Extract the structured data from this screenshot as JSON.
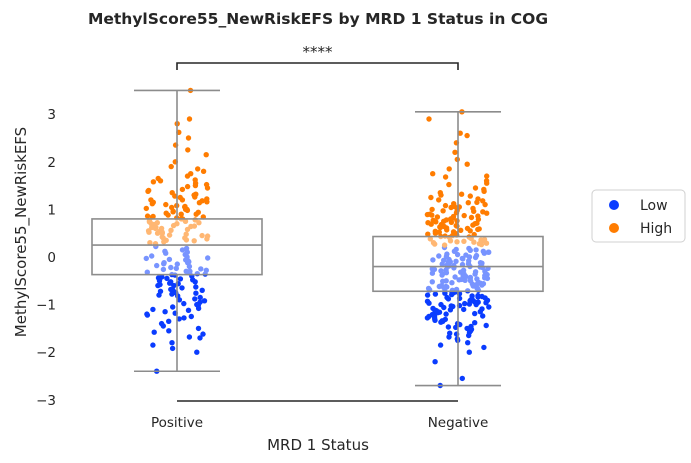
{
  "chart_data": {
    "type": "box+strip",
    "title": "MethylScore55_NewRiskEFS by MRD 1 Status in COG",
    "xlabel": "MRD 1 Status",
    "ylabel": "MethylScore55_NewRiskEFS",
    "categories": [
      "Positive",
      "Negative"
    ],
    "y_ticks": [
      -3,
      -2,
      -1,
      0,
      1,
      2,
      3
    ],
    "ylim": [
      -3.05,
      3.7
    ],
    "grid": false,
    "boxes": [
      {
        "category": "Positive",
        "whisker_low": -2.4,
        "q1": -0.37,
        "median": 0.25,
        "q3": 0.8,
        "whisker_high": 3.5
      },
      {
        "category": "Negative",
        "whisker_low": -2.7,
        "q1": -0.72,
        "median": -0.2,
        "q3": 0.43,
        "whisker_high": 3.05
      }
    ],
    "significance": {
      "label": "****",
      "between": [
        "Positive",
        "Negative"
      ]
    },
    "legend": {
      "placement": "right",
      "entries": [
        {
          "name": "Low",
          "color": "#0a3cff"
        },
        {
          "name": "High",
          "color": "#ff7c00"
        }
      ]
    },
    "strip_series": [
      {
        "name": "Low",
        "color": "#0a3cff",
        "points": {
          "Positive": [
            0.18,
            0.12,
            0.05,
            -0.02,
            -0.08,
            -0.12,
            -0.18,
            -0.25,
            -0.3,
            -0.35,
            -0.4,
            -0.45,
            -0.52,
            -0.6,
            -0.65,
            -0.72,
            -0.8,
            -0.88,
            -0.95,
            -1.02,
            -1.1,
            -1.18,
            -1.25,
            -1.35,
            -1.45,
            -1.55,
            -1.62,
            -1.7,
            -1.8,
            -1.92,
            -2.0,
            -2.4,
            0.22,
            0.08,
            -0.05,
            -0.15,
            -0.28,
            -0.38,
            -0.48,
            -0.58,
            -0.7,
            -0.85,
            -1.0,
            -1.15,
            -1.3,
            -1.5,
            -1.68,
            -1.85,
            0.15,
            0.02,
            -0.1,
            -0.22,
            -0.33,
            -0.42,
            -0.55,
            -0.68,
            -0.78,
            -0.92,
            -1.05,
            -1.22,
            -1.4,
            -1.58,
            0.1,
            -0.03,
            -0.14,
            -0.26,
            -0.37,
            -0.5,
            -0.63,
            -0.75,
            -0.9,
            -1.08,
            -1.28,
            -0.2,
            -0.32,
            -0.46,
            -0.6,
            -0.82,
            0.0,
            -0.12,
            -0.24,
            -0.36,
            -0.44,
            -0.56,
            -0.7,
            -0.98,
            -1.2,
            -0.06,
            -0.3,
            -0.52,
            -0.76,
            -1.12
          ],
          "Negative": [
            0.2,
            0.15,
            0.1,
            0.05,
            0.02,
            -0.03,
            -0.08,
            -0.12,
            -0.16,
            -0.2,
            -0.25,
            -0.3,
            -0.34,
            -0.38,
            -0.42,
            -0.46,
            -0.5,
            -0.55,
            -0.6,
            -0.65,
            -0.7,
            -0.75,
            -0.8,
            -0.85,
            -0.9,
            -0.95,
            -1.0,
            -1.05,
            -1.1,
            -1.15,
            -1.2,
            -1.28,
            -1.35,
            -1.42,
            -1.5,
            -1.58,
            -1.65,
            -1.72,
            -1.8,
            -1.9,
            -2.0,
            -2.2,
            -2.55,
            -2.7,
            0.18,
            0.12,
            0.06,
            0.0,
            -0.05,
            -0.1,
            -0.15,
            -0.2,
            -0.26,
            -0.32,
            -0.37,
            -0.43,
            -0.48,
            -0.53,
            -0.58,
            -0.63,
            -0.68,
            -0.73,
            -0.78,
            -0.83,
            -0.88,
            -0.93,
            -0.98,
            -1.03,
            -1.08,
            -1.14,
            -1.22,
            -1.3,
            -1.38,
            -1.46,
            -1.55,
            -1.68,
            -1.85,
            0.16,
            0.08,
            0.01,
            -0.06,
            -0.13,
            -0.19,
            -0.24,
            -0.29,
            -0.35,
            -0.4,
            -0.45,
            -0.51,
            -0.57,
            -0.62,
            -0.67,
            -0.72,
            -0.77,
            -0.82,
            -0.87,
            -0.92,
            -0.99,
            -1.06,
            -1.12,
            -1.19,
            -1.25,
            -1.33,
            -1.4,
            -1.48,
            -1.6,
            0.14,
            0.04,
            -0.04,
            -0.11,
            -0.18,
            -0.23,
            -0.28,
            -0.33,
            -0.39,
            -0.44,
            -0.49,
            -0.54,
            -0.59,
            -0.64,
            -0.69,
            -0.74,
            -0.79,
            -0.86,
            -0.91,
            -0.97,
            -1.04,
            -1.11,
            -1.17,
            -1.24,
            -1.31,
            -1.44,
            -1.52,
            0.1,
            -0.01,
            -0.09,
            -0.14,
            -0.22,
            -0.27,
            -0.31,
            -0.36,
            -0.41,
            -0.47,
            -0.52,
            -0.56,
            -0.61,
            -0.66,
            -0.71,
            -0.76,
            -0.84,
            -0.89,
            -0.96,
            -1.02,
            -1.09,
            -1.16,
            -1.26,
            -1.37,
            0.12,
            0.03,
            -0.07,
            -0.17,
            -0.21,
            -0.36,
            -0.44,
            -0.5,
            -0.62,
            -0.7,
            -0.81,
            -0.94,
            -1.0,
            -1.13,
            -1.21,
            -1.34,
            -1.47,
            -1.62,
            -1.75
          ]
        }
      },
      {
        "name": "High",
        "color": "#ff7c00",
        "points": {
          "Positive": [
            0.3,
            0.35,
            0.4,
            0.45,
            0.5,
            0.55,
            0.6,
            0.65,
            0.7,
            0.75,
            0.8,
            0.85,
            0.9,
            0.95,
            1.0,
            1.05,
            1.1,
            1.15,
            1.2,
            1.25,
            1.3,
            1.35,
            1.4,
            1.45,
            1.5,
            1.55,
            1.6,
            1.65,
            1.7,
            1.8,
            1.9,
            2.0,
            2.15,
            2.25,
            2.35,
            2.5,
            2.62,
            2.8,
            2.9,
            3.5,
            0.32,
            0.42,
            0.52,
            0.62,
            0.72,
            0.82,
            0.92,
            1.02,
            1.12,
            1.22,
            1.32,
            1.42,
            1.52,
            1.62,
            1.75,
            1.85,
            0.38,
            0.48,
            0.58,
            0.68,
            0.78,
            0.88,
            0.98,
            1.08,
            1.18,
            1.28,
            1.38,
            1.48,
            1.58,
            0.28,
            0.44,
            0.56,
            0.66,
            0.74,
            0.84,
            0.96,
            1.06,
            1.16,
            1.26,
            0.34,
            0.46,
            0.54,
            0.64,
            0.76,
            0.86,
            0.94,
            1.04,
            1.14,
            0.36,
            0.5,
            0.6,
            0.7,
            0.8,
            0.9,
            1.0,
            1.2,
            0.4,
            0.52,
            0.62,
            0.72,
            0.84
          ],
          "Negative": [
            0.25,
            0.28,
            0.3,
            0.32,
            0.35,
            0.38,
            0.4,
            0.42,
            0.45,
            0.48,
            0.5,
            0.52,
            0.55,
            0.58,
            0.6,
            0.62,
            0.65,
            0.68,
            0.7,
            0.72,
            0.75,
            0.78,
            0.8,
            0.82,
            0.85,
            0.88,
            0.9,
            0.95,
            1.0,
            1.05,
            1.1,
            1.15,
            1.2,
            1.25,
            1.3,
            1.38,
            1.45,
            1.52,
            1.6,
            1.68,
            1.75,
            1.85,
            1.95,
            2.05,
            2.2,
            2.4,
            2.55,
            2.6,
            2.9,
            3.05,
            0.26,
            0.31,
            0.36,
            0.41,
            0.46,
            0.51,
            0.56,
            0.61,
            0.66,
            0.71,
            0.76,
            0.81,
            0.86,
            0.92,
            0.98,
            1.04,
            1.12,
            1.22,
            1.32,
            1.42,
            1.55,
            1.7,
            0.27,
            0.33,
            0.39,
            0.44,
            0.49,
            0.54,
            0.59,
            0.64,
            0.69,
            0.74,
            0.79,
            0.84,
            0.89,
            0.96,
            1.08,
            1.18,
            1.35,
            0.29,
            0.34,
            0.43,
            0.53,
            0.63,
            0.73,
            0.83,
            0.93,
            1.02,
            1.14,
            1.28,
            0.37,
            0.47,
            0.57,
            0.67,
            0.77,
            0.87,
            0.97,
            1.06
          ]
        }
      }
    ]
  }
}
